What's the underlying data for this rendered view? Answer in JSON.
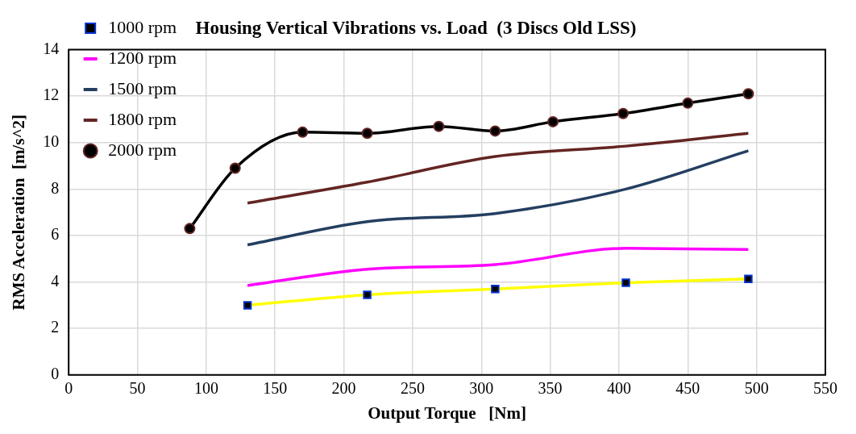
{
  "chart_data": {
    "type": "line",
    "title": "Housing Vertical Vibrations vs. Load  (3 Discs Old LSS)",
    "xlabel": "Output Torque   [Nm]",
    "ylabel": "RMS Acceleration  [m/s^2]",
    "xlim": [
      0,
      550
    ],
    "xticks": [
      0,
      50,
      100,
      150,
      200,
      250,
      300,
      350,
      400,
      450,
      500,
      550
    ],
    "ylim": [
      0,
      14
    ],
    "yticks": [
      0,
      2,
      4,
      6,
      8,
      10,
      12,
      14
    ],
    "grid": true,
    "legend": "top left",
    "series": [
      {
        "name": "1000 rpm",
        "color": "#ffff00",
        "marker": "square",
        "x": [
          130,
          217,
          310,
          405,
          494
        ],
        "values": [
          3.0,
          3.45,
          3.7,
          3.97,
          4.13
        ]
      },
      {
        "name": "1200 rpm",
        "color": "#ff00ff",
        "marker": "none",
        "x": [
          130,
          217,
          310,
          405,
          494
        ],
        "values": [
          3.85,
          4.55,
          4.75,
          5.45,
          5.4
        ]
      },
      {
        "name": "1500 rpm",
        "color": "#243f60",
        "marker": "none",
        "x": [
          130,
          217,
          310,
          405,
          494
        ],
        "values": [
          5.6,
          6.6,
          6.95,
          8.0,
          9.65
        ]
      },
      {
        "name": "1800 rpm",
        "color": "#632523",
        "marker": "none",
        "x": [
          130,
          217,
          310,
          405,
          494
        ],
        "values": [
          7.4,
          8.3,
          9.4,
          9.85,
          10.4
        ]
      },
      {
        "name": "2000 rpm",
        "color": "#000000",
        "marker": "circle",
        "x": [
          88,
          121,
          170,
          217,
          269,
          310,
          352,
          403,
          450,
          494
        ],
        "values": [
          6.3,
          8.9,
          10.45,
          10.4,
          10.7,
          10.5,
          10.9,
          11.25,
          11.7,
          12.1
        ]
      }
    ]
  }
}
